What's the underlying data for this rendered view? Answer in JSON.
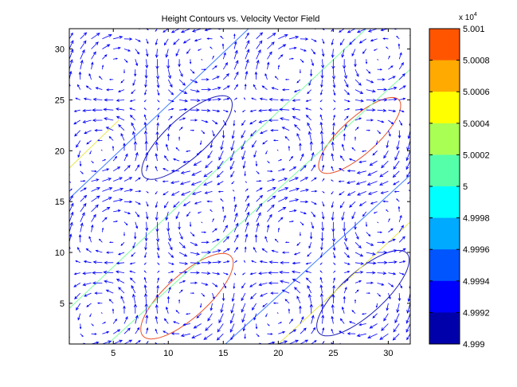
{
  "chart_data": {
    "type": "quiver-contour",
    "title": "Height Contours vs. Velocity Vector Field",
    "xlabel": "",
    "ylabel": "",
    "xlim": [
      1,
      32
    ],
    "ylim": [
      1,
      32
    ],
    "xticks": [
      5,
      10,
      15,
      20,
      25,
      30
    ],
    "yticks": [
      5,
      10,
      15,
      20,
      25,
      30
    ],
    "grid": false,
    "arrow_color": "#0000ff",
    "vector_field": {
      "grid_start": 1,
      "grid_end": 32,
      "grid_step": 1,
      "center": [
        16.5,
        16.5
      ],
      "cells": 4,
      "description_centers_ccw": [
        [
          9.5,
          9.5
        ],
        [
          23.5,
          23.5
        ]
      ],
      "description_centers_cw": [
        [
          9.5,
          23.5
        ],
        [
          23.5,
          9.5
        ]
      ]
    },
    "contours": [
      {
        "level": 49994,
        "color": "#1f1fb8",
        "shape": "ellipse",
        "center": [
          11.7,
          21.3
        ],
        "rx": 5.5,
        "ry": 1.9,
        "angle_deg": 45
      },
      {
        "level": 49994,
        "color": "#1f1fb8",
        "shape": "ellipse",
        "center": [
          27.7,
          6.0
        ],
        "rx": 5.6,
        "ry": 2.0,
        "angle_deg": 45
      },
      {
        "level": 50006,
        "color": "#e8512a",
        "shape": "ellipse",
        "center": [
          11.7,
          5.7
        ],
        "rx": 5.6,
        "ry": 2.0,
        "angle_deg": 45
      },
      {
        "level": 50006,
        "color": "#e8512a",
        "shape": "ellipse",
        "center": [
          27.4,
          21.5
        ],
        "rx": 5.0,
        "ry": 1.7,
        "angle_deg": 45
      },
      {
        "level": 49998,
        "color": "#3f7fff",
        "shape": "line",
        "points": [
          [
            1,
            15.3
          ],
          [
            17.3,
            32
          ]
        ]
      },
      {
        "level": 49998,
        "color": "#3f7fff",
        "shape": "line",
        "points": [
          [
            15.2,
            1
          ],
          [
            32,
            17.6
          ]
        ]
      },
      {
        "level": 50002,
        "color": "#7fffa0",
        "shape": "line",
        "points": [
          [
            1,
            4.5
          ],
          [
            28,
            32
          ]
        ]
      },
      {
        "level": 50002,
        "color": "#7fffa0",
        "shape": "line",
        "points": [
          [
            4.5,
            1
          ],
          [
            32,
            28
          ]
        ]
      },
      {
        "level": 50004,
        "color": "#e8e850",
        "shape": "line",
        "points": [
          [
            1,
            18.3
          ],
          [
            5.5,
            23
          ]
        ]
      },
      {
        "level": 50004,
        "color": "#e8e850",
        "shape": "line",
        "points": [
          [
            20,
            1
          ],
          [
            32,
            13
          ]
        ]
      }
    ],
    "colorbar": {
      "exponent_label": "x 10",
      "exponent": "4",
      "ticks": [
        "5.001",
        "5.0008",
        "5.0006",
        "5.0004",
        "5.0002",
        "5",
        "4.9998",
        "4.9996",
        "4.9994",
        "4.9992",
        "4.999"
      ],
      "colors_top_to_bottom": [
        "#ff5500",
        "#ffaa00",
        "#ffff00",
        "#aaff55",
        "#55ffaa",
        "#00ffff",
        "#00aaff",
        "#0055ff",
        "#0000ff",
        "#0000aa"
      ]
    }
  }
}
